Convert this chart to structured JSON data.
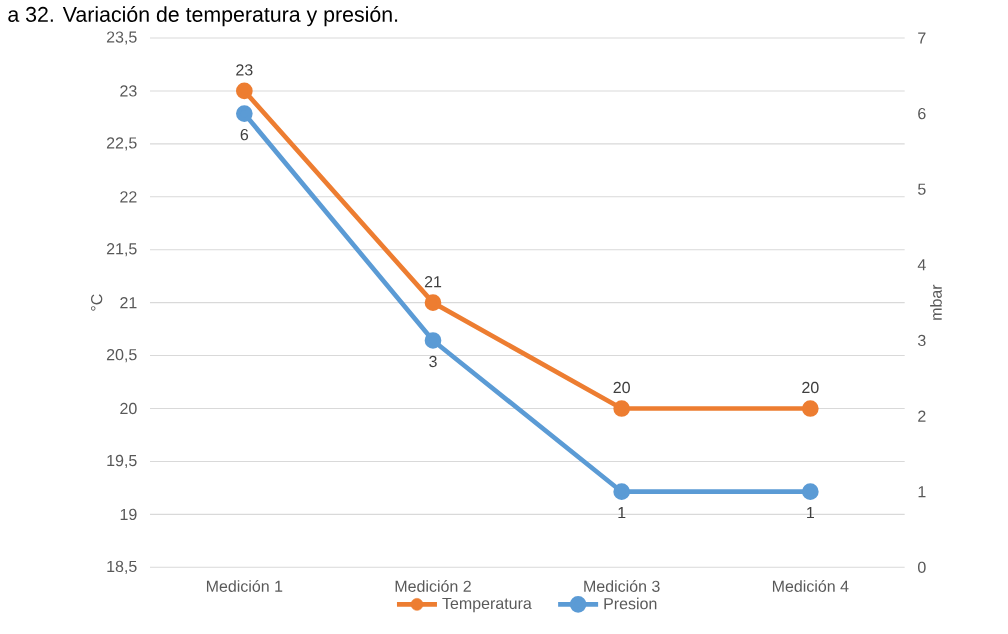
{
  "chart_data": {
    "type": "line",
    "title": "a 32. Variación de temperatura y presión.",
    "categories": [
      "Medición 1",
      "Medición 2",
      "Medición 3",
      "Medición 4"
    ],
    "ylabel": "°C",
    "y2label": "mbar",
    "ylim": [
      18.5,
      23.5
    ],
    "yticks": [
      {
        "value": 18.5,
        "label": "18,5"
      },
      19,
      {
        "value": 19.5,
        "label": "19,5"
      },
      20,
      {
        "value": 20.5,
        "label": "20,5"
      },
      21,
      {
        "value": 21.5,
        "label": "21,5"
      },
      22,
      {
        "value": 22.5,
        "label": "22,5"
      },
      23,
      {
        "value": 23.5,
        "label": "23,5"
      }
    ],
    "y2lim": [
      0,
      7
    ],
    "y2ticks": [
      0,
      1,
      2,
      3,
      4,
      5,
      6,
      7
    ],
    "series": [
      {
        "name": "Temperatura",
        "color": "#ed7d31",
        "values": [
          23,
          21,
          20,
          20
        ]
      },
      {
        "name": "Presion",
        "color": "#5b9bd5",
        "values": [
          6,
          3,
          1,
          1
        ],
        "axis": "y2"
      }
    ],
    "data_labels": true,
    "grid": "y",
    "legend": "bottom",
    "marker": "circle",
    "line_style": "solid"
  }
}
